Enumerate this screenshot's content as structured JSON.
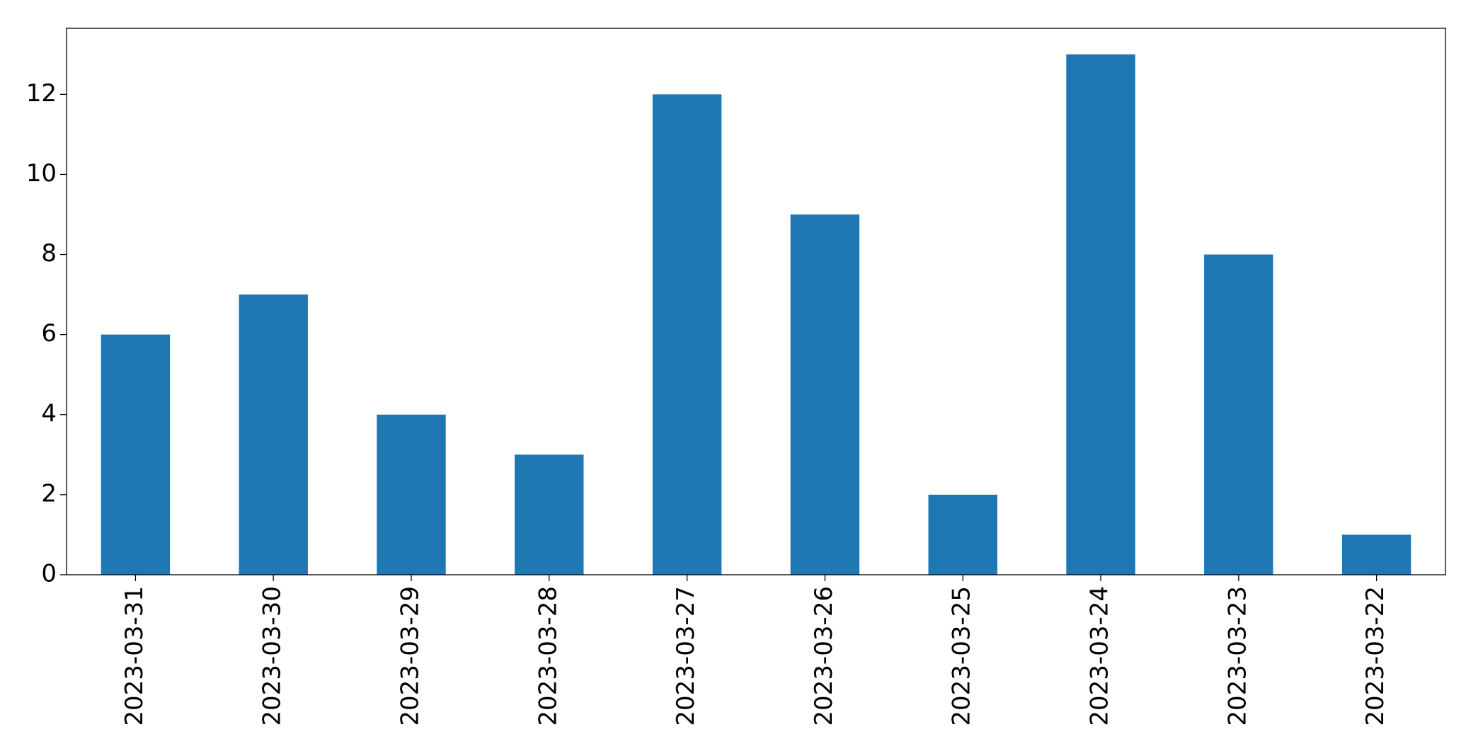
{
  "chart_data": {
    "type": "bar",
    "categories": [
      "2023-03-31",
      "2023-03-30",
      "2023-03-29",
      "2023-03-28",
      "2023-03-27",
      "2023-03-26",
      "2023-03-25",
      "2023-03-24",
      "2023-03-23",
      "2023-03-22"
    ],
    "values": [
      6,
      7,
      4,
      3,
      12,
      9,
      2,
      13,
      8,
      1
    ],
    "color": "#1f77b4",
    "ylim": [
      0,
      13.65
    ],
    "yticks": [
      0,
      2,
      4,
      6,
      8,
      10,
      12
    ],
    "grid": false
  }
}
